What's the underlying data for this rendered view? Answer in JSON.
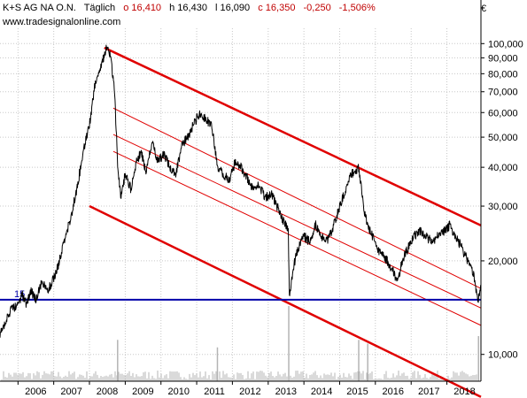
{
  "header": {
    "name": "K+S AG NA O.N.",
    "period": "Täglich",
    "open": "o 16,410",
    "high": "h 16,430",
    "low": "l 16,090",
    "close": "c 16,350",
    "change": "-0,250",
    "change_pct": "-1,506%",
    "website": "www.tradesignalonline.com",
    "currency": "€"
  },
  "colors": {
    "price": "#000000",
    "channel": "#e00000",
    "support": "#0000aa",
    "grid": "#c8c8c8",
    "volume": "#b4b4b4"
  },
  "chart_data": {
    "type": "line",
    "title": "K+S AG NA O.N.",
    "y_scale": "log",
    "ylim": [
      8200,
      112000
    ],
    "xlim": [
      "2005-07-01",
      "2018-12-15"
    ],
    "x_tick_labels": [
      "2006",
      "2007",
      "2008",
      "2009",
      "2010",
      "2011",
      "2012",
      "2013",
      "2014",
      "2015",
      "2016",
      "2017",
      "2018"
    ],
    "x_tick_dates": [
      "2006-01-01",
      "2007-01-01",
      "2008-01-01",
      "2009-01-01",
      "2010-01-01",
      "2011-01-01",
      "2012-01-01",
      "2013-01-01",
      "2014-01-01",
      "2015-01-01",
      "2016-01-01",
      "2017-01-01",
      "2018-01-01"
    ],
    "y_tick_values": [
      100000,
      90000,
      80000,
      70000,
      60000,
      50000,
      40000,
      30000,
      20000,
      10000
    ],
    "y_tick_labels": [
      "100,000",
      "90,000",
      "80,000",
      "70,000",
      "60,000",
      "50,000",
      "40,000",
      "30,000",
      "20,000",
      "10,000"
    ],
    "support_line": {
      "value": 15000,
      "label": "15"
    },
    "price_series": {
      "dates": [
        "2005-07-01",
        "2005-09-01",
        "2005-11-01",
        "2006-01-01",
        "2006-02-15",
        "2006-04-01",
        "2006-05-15",
        "2006-07-01",
        "2006-09-01",
        "2006-11-01",
        "2007-01-01",
        "2007-03-01",
        "2007-05-01",
        "2007-07-01",
        "2007-09-01",
        "2007-11-01",
        "2008-01-01",
        "2008-03-01",
        "2008-05-01",
        "2008-06-20",
        "2008-08-01",
        "2008-09-15",
        "2008-10-15",
        "2008-11-15",
        "2009-01-01",
        "2009-03-01",
        "2009-05-01",
        "2009-06-15",
        "2009-08-01",
        "2009-10-01",
        "2009-12-01",
        "2010-02-01",
        "2010-04-01",
        "2010-06-01",
        "2010-08-01",
        "2010-10-01",
        "2010-12-01",
        "2011-02-01",
        "2011-04-01",
        "2011-06-01",
        "2011-08-01",
        "2011-10-01",
        "2011-12-01",
        "2012-02-01",
        "2012-04-01",
        "2012-06-01",
        "2012-08-01",
        "2012-10-01",
        "2012-12-01",
        "2013-02-01",
        "2013-04-01",
        "2013-06-01",
        "2013-07-25",
        "2013-08-05",
        "2013-09-15",
        "2013-11-01",
        "2014-01-01",
        "2014-03-01",
        "2014-05-01",
        "2014-07-01",
        "2014-09-01",
        "2014-11-01",
        "2015-01-01",
        "2015-03-01",
        "2015-05-01",
        "2015-07-15",
        "2015-09-01",
        "2015-10-15",
        "2015-12-01",
        "2016-01-15",
        "2016-03-01",
        "2016-05-01",
        "2016-07-01",
        "2016-08-15",
        "2016-10-01",
        "2016-12-01",
        "2017-02-01",
        "2017-04-01",
        "2017-06-01",
        "2017-08-01",
        "2017-10-01",
        "2017-12-01",
        "2018-02-01",
        "2018-04-01",
        "2018-06-01",
        "2018-08-01",
        "2018-10-01",
        "2018-11-15",
        "2018-12-15"
      ],
      "values": [
        11500,
        13000,
        14000,
        14500,
        15500,
        14500,
        16000,
        15000,
        17000,
        16000,
        17500,
        20000,
        24000,
        28000,
        35000,
        45000,
        55000,
        75000,
        85000,
        97000,
        92000,
        70000,
        40000,
        32000,
        38000,
        34000,
        42000,
        45000,
        38000,
        48000,
        42000,
        44000,
        40000,
        38000,
        47000,
        50000,
        55000,
        60000,
        57000,
        55000,
        40000,
        38000,
        36000,
        42000,
        40000,
        37000,
        34000,
        35000,
        32000,
        33000,
        30000,
        27000,
        25000,
        15500,
        19000,
        22000,
        24000,
        23000,
        26000,
        24000,
        23000,
        26000,
        30000,
        34000,
        38000,
        40000,
        30000,
        26000,
        24000,
        22000,
        21000,
        20000,
        18500,
        17000,
        20000,
        22000,
        24000,
        25000,
        24000,
        23000,
        24000,
        25000,
        26000,
        24000,
        22000,
        20000,
        18000,
        15000,
        16350
      ]
    },
    "channel_lines": [
      {
        "name": "upper",
        "start": [
          "2008-06-01",
          97000
        ],
        "end": [
          "2018-12-15",
          26000
        ],
        "weight": "bold"
      },
      {
        "name": "mid-1",
        "start": [
          "2008-09-01",
          62000
        ],
        "end": [
          "2018-12-15",
          16300
        ],
        "weight": "thin"
      },
      {
        "name": "mid-2",
        "start": [
          "2008-09-01",
          51000
        ],
        "end": [
          "2018-12-15",
          14100
        ],
        "weight": "thin"
      },
      {
        "name": "mid-3",
        "start": [
          "2008-09-01",
          45000
        ],
        "end": [
          "2018-12-15",
          12400
        ],
        "weight": "thin"
      },
      {
        "name": "lower",
        "start": [
          "2008-01-01",
          30000
        ],
        "end": [
          "2018-12-15",
          7300
        ],
        "weight": "bold"
      }
    ],
    "volume": {
      "baseline_value": 0,
      "spikes": [
        {
          "date": "2008-10-15",
          "value": 0.55
        },
        {
          "date": "2011-08-01",
          "value": 0.45
        },
        {
          "date": "2013-07-30",
          "value": 1.0
        },
        {
          "date": "2015-07-15",
          "value": 0.55
        },
        {
          "date": "2015-10-15",
          "value": 0.5
        },
        {
          "date": "2018-11-20",
          "value": 0.6
        }
      ]
    }
  }
}
